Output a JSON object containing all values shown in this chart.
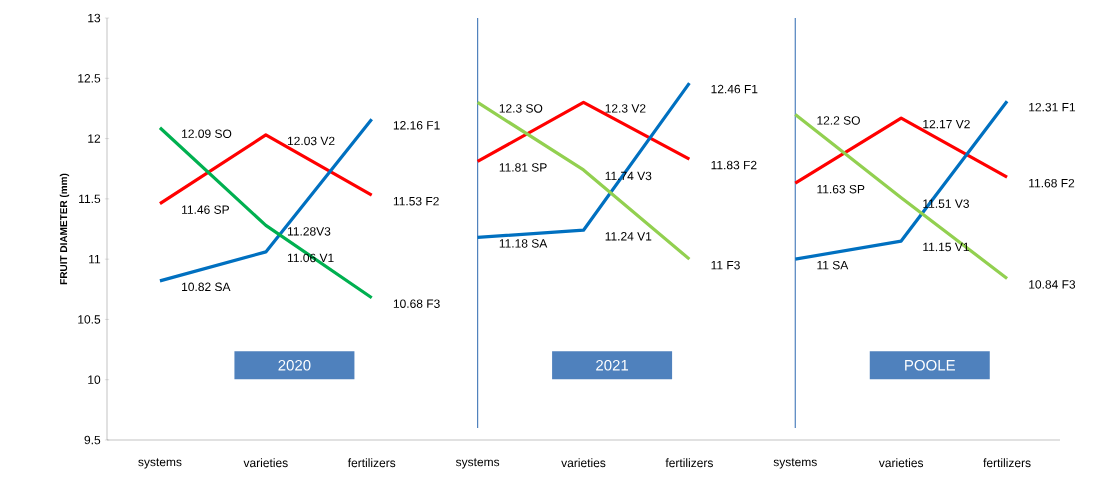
{
  "chart_data": {
    "type": "line",
    "ylabel": "FRUIT DIAMETER (mm)",
    "categories": [
      "systems",
      "varieties",
      "fertilizers",
      "systems",
      "varieties",
      "fertilizers",
      "systems",
      "varieties",
      "fertilizers"
    ],
    "ylim": [
      9.5,
      13
    ],
    "yticks": [
      9.5,
      10,
      10.5,
      11,
      11.5,
      12,
      12.5,
      13
    ],
    "marker": "none",
    "line_style": "solid",
    "series": [
      {
        "color": "#ff0000",
        "values": [
          11.46,
          12.03,
          11.53,
          null,
          null,
          null,
          null,
          null,
          null
        ],
        "value_labels": [
          "11.46 SP",
          "12.03 V2",
          "11.53 F2",
          null,
          null,
          null,
          null,
          null,
          null
        ]
      },
      {
        "color": "#0070c0",
        "values": [
          10.82,
          11.06,
          12.16,
          null,
          null,
          null,
          null,
          null,
          null
        ],
        "value_labels": [
          "10.82 SA",
          "11.06 V1",
          "12.16 F1",
          null,
          null,
          null,
          null,
          null,
          null
        ]
      },
      {
        "color": "#00b050",
        "values": [
          12.09,
          11.28,
          10.68,
          null,
          null,
          null,
          null,
          null,
          null
        ],
        "value_labels": [
          "12.09 SO",
          "11.28V3",
          "10.68 F3",
          null,
          null,
          null,
          null,
          null,
          null
        ]
      },
      {
        "color": "#ff0000",
        "values": [
          null,
          null,
          null,
          11.81,
          12.3,
          11.83,
          null,
          null,
          null
        ],
        "value_labels": [
          null,
          null,
          null,
          "11.81 SP",
          "12.3 V2",
          "11.83 F2",
          null,
          null,
          null
        ]
      },
      {
        "color": "#0070c0",
        "values": [
          null,
          null,
          null,
          11.18,
          11.24,
          12.46,
          null,
          null,
          null
        ],
        "value_labels": [
          null,
          null,
          null,
          "11.18 SA",
          "11.24 V1",
          "12.46 F1",
          null,
          null,
          null
        ]
      },
      {
        "color": "#92d050",
        "values": [
          null,
          null,
          null,
          12.3,
          11.74,
          11.0,
          null,
          null,
          null
        ],
        "value_labels": [
          null,
          null,
          null,
          "12.3 SO",
          "11.74 V3",
          "11 F3",
          null,
          null,
          null
        ]
      },
      {
        "color": "#ff0000",
        "values": [
          null,
          null,
          null,
          null,
          null,
          null,
          11.63,
          12.17,
          11.68
        ],
        "value_labels": [
          null,
          null,
          null,
          null,
          null,
          null,
          "11.63 SP",
          "12.17 V2",
          "11.68 F2"
        ]
      },
      {
        "color": "#0070c0",
        "values": [
          null,
          null,
          null,
          null,
          null,
          null,
          11.0,
          11.15,
          12.31
        ],
        "value_labels": [
          null,
          null,
          null,
          null,
          null,
          null,
          "11 SA",
          "11.15 V1",
          "12.31 F1"
        ]
      },
      {
        "color": "#92d050",
        "values": [
          null,
          null,
          null,
          null,
          null,
          null,
          12.2,
          11.51,
          10.84
        ],
        "value_labels": [
          null,
          null,
          null,
          null,
          null,
          null,
          "12.2 SO",
          "11.51 V3",
          "10.84 F3"
        ]
      }
    ],
    "annotations": [
      "2020",
      "2021",
      "POOLE"
    ]
  }
}
